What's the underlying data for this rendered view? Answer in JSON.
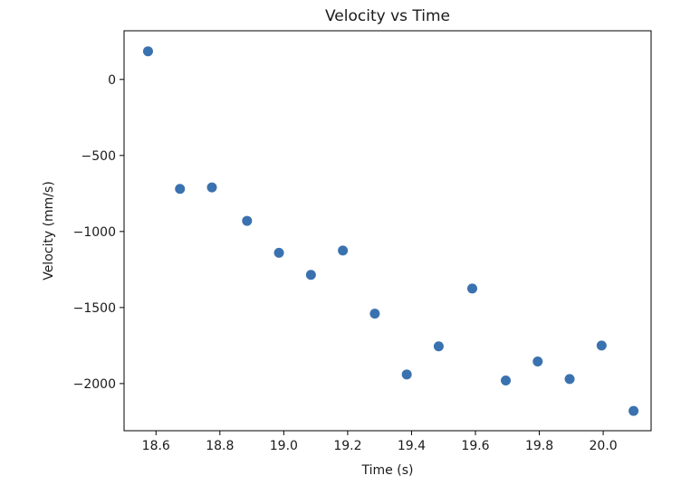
{
  "chart_data": {
    "type": "scatter",
    "title": "Velocity vs Time",
    "xlabel": "Time (s)",
    "ylabel": "Velocity (mm/s)",
    "xlim": [
      18.5,
      20.15
    ],
    "ylim": [
      -2310,
      320
    ],
    "x_ticks": [
      18.6,
      18.8,
      19.0,
      19.2,
      19.4,
      19.6,
      19.8,
      20.0
    ],
    "x_tick_labels": [
      "18.6",
      "18.8",
      "19.0",
      "19.2",
      "19.4",
      "19.6",
      "19.8",
      "20.0"
    ],
    "y_ticks": [
      0,
      -500,
      -1000,
      -1500,
      -2000
    ],
    "y_tick_labels": [
      "0",
      "−500",
      "−1000",
      "−1500",
      "−2000"
    ],
    "grid": false,
    "marker_color": "#3a72b0",
    "x": [
      18.575,
      18.675,
      18.775,
      18.885,
      18.985,
      19.085,
      19.185,
      19.285,
      19.385,
      19.485,
      19.59,
      19.695,
      19.795,
      19.895,
      19.995,
      20.095
    ],
    "y": [
      185,
      -720,
      -710,
      -930,
      -1140,
      -1285,
      -1125,
      -1540,
      -1940,
      -1755,
      -1375,
      -1980,
      -1855,
      -1970,
      -1750,
      -2180
    ]
  }
}
